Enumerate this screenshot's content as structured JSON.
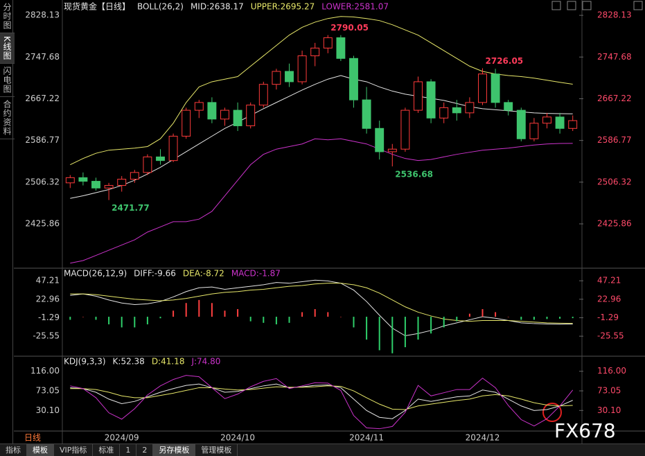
{
  "sidebar_tabs": [
    "分时图",
    "K线图",
    "闪电图",
    "合约资料"
  ],
  "period": "日线",
  "toolbar": [
    "指标",
    "模板",
    "VIP指标",
    "标准",
    "1",
    "2",
    "另存模板",
    "管理模板"
  ],
  "watermark": "FX678",
  "chart_data": [
    {
      "type": "candlestick",
      "title": "现货黄金【日线】",
      "subtitle": "BOLL(26,2)",
      "categories": [
        null,
        null,
        null,
        null,
        "2024/09",
        null,
        null,
        null,
        null,
        null,
        null,
        null,
        null,
        "2024/10",
        null,
        null,
        null,
        null,
        null,
        null,
        null,
        null,
        null,
        "2024/11",
        null,
        null,
        null,
        null,
        null,
        null,
        null,
        null,
        "2024/12",
        null,
        null,
        null,
        null,
        null,
        null,
        null
      ],
      "open": [
        2505,
        2515,
        2508,
        2495,
        2500,
        2512,
        2525,
        2555,
        2548,
        2595,
        2645,
        2660,
        2628,
        2645,
        2615,
        2655,
        2695,
        2720,
        2700,
        2750,
        2765,
        2785,
        2745,
        2665,
        2610,
        2565,
        2570,
        2645,
        2700,
        2630,
        2650,
        2640,
        2660,
        2715,
        2660,
        2645,
        2590,
        2620,
        2632,
        2610
      ],
      "high": [
        2520,
        2525,
        2515,
        2505,
        2518,
        2530,
        2560,
        2570,
        2600,
        2650,
        2665,
        2670,
        2650,
        2660,
        2660,
        2700,
        2725,
        2735,
        2760,
        2775,
        2790.05,
        2790,
        2750,
        2690,
        2625,
        2580,
        2650,
        2710,
        2705,
        2660,
        2665,
        2670,
        2726.05,
        2725,
        2665,
        2650,
        2630,
        2640,
        2640,
        2635
      ],
      "low": [
        2495,
        2500,
        2490,
        2471.77,
        2488,
        2505,
        2520,
        2540,
        2545,
        2590,
        2630,
        2620,
        2615,
        2605,
        2610,
        2650,
        2685,
        2690,
        2695,
        2730,
        2755,
        2740,
        2650,
        2600,
        2550,
        2536.68,
        2565,
        2640,
        2620,
        2620,
        2625,
        2630,
        2655,
        2650,
        2635,
        2585,
        2585,
        2610,
        2600,
        2605
      ],
      "close": [
        2515,
        2508,
        2495,
        2500,
        2512,
        2525,
        2555,
        2548,
        2595,
        2645,
        2660,
        2628,
        2645,
        2615,
        2655,
        2695,
        2720,
        2700,
        2750,
        2765,
        2785,
        2745,
        2665,
        2610,
        2565,
        2570,
        2645,
        2700,
        2630,
        2650,
        2640,
        2660,
        2715,
        2660,
        2645,
        2590,
        2620,
        2632,
        2610,
        2625
      ],
      "up_color": "#ff3b3b",
      "down_color": "#3ec46d",
      "series": [
        {
          "name": "MID:2638.17",
          "color": "#e6e6e6",
          "values": [
            2475,
            2480,
            2486,
            2492,
            2500,
            2510,
            2522,
            2535,
            2550,
            2565,
            2580,
            2595,
            2610,
            2622,
            2635,
            2648,
            2660,
            2672,
            2684,
            2695,
            2705,
            2712,
            2705,
            2700,
            2690,
            2682,
            2676,
            2672,
            2668,
            2664,
            2658,
            2652,
            2648,
            2646,
            2644,
            2642,
            2640,
            2639,
            2638.5,
            2638.17
          ]
        },
        {
          "name": "UPPER:2695.27",
          "color": "#e8e86a",
          "values": [
            2540,
            2552,
            2562,
            2568,
            2570,
            2572,
            2575,
            2590,
            2620,
            2660,
            2690,
            2700,
            2705,
            2710,
            2730,
            2750,
            2770,
            2790,
            2805,
            2815,
            2822,
            2826,
            2825,
            2822,
            2818,
            2810,
            2800,
            2790,
            2775,
            2760,
            2745,
            2730,
            2720,
            2715,
            2712,
            2710,
            2707,
            2703,
            2699,
            2695.27
          ]
        },
        {
          "name": "LOWER:2581.07",
          "color": "#cc33cc",
          "values": [
            2350,
            2355,
            2365,
            2375,
            2385,
            2395,
            2410,
            2420,
            2430,
            2430,
            2435,
            2450,
            2480,
            2510,
            2540,
            2560,
            2570,
            2575,
            2580,
            2590,
            2588,
            2590,
            2585,
            2580,
            2570,
            2560,
            2552,
            2548,
            2550,
            2555,
            2560,
            2564,
            2568,
            2570,
            2572,
            2575,
            2578,
            2580,
            2581,
            2581.07
          ]
        }
      ],
      "ylim": [
        2343,
        2847
      ],
      "yticks": [
        2425.86,
        2506.32,
        2586.77,
        2667.22,
        2747.68,
        2828.13
      ]
    },
    {
      "type": "bar",
      "title": "MACD(26,12,9)",
      "up_color": "#ff4040",
      "down_color": "#2fcf6a",
      "series": [
        {
          "name": "DIFF:-9.66",
          "type": "line",
          "color": "#e6e6e6",
          "values": [
            28,
            30,
            27,
            22,
            18,
            16,
            17,
            20,
            26,
            33,
            38,
            39,
            36,
            38,
            40,
            42,
            45,
            44,
            46,
            48,
            47,
            44,
            35,
            20,
            2,
            -15,
            -25,
            -22,
            -18,
            -12,
            -8,
            -4,
            0,
            -2,
            -5,
            -8,
            -9,
            -9.5,
            -9.8,
            -9.66
          ]
        },
        {
          "name": "DEA:-8.72",
          "type": "line",
          "color": "#e8e86a",
          "values": [
            30,
            30,
            29,
            27,
            25,
            23,
            22,
            21,
            22,
            24,
            27,
            30,
            32,
            33,
            35,
            36,
            38,
            40,
            41,
            43,
            44,
            44,
            42,
            38,
            31,
            22,
            13,
            6,
            1,
            -3,
            -5,
            -6,
            -5,
            -5,
            -5,
            -6,
            -7,
            -8,
            -8.5,
            -8.72
          ]
        },
        {
          "name": "MACD:-1.87",
          "type": "bar",
          "color": "#cc33cc",
          "values": [
            -4,
            0,
            -4,
            -10,
            -14,
            -14,
            -10,
            -2,
            8,
            18,
            22,
            18,
            8,
            10,
            -6,
            -8,
            -10,
            -8,
            6,
            10,
            6,
            0,
            -14,
            -30,
            -44,
            -48,
            -40,
            -30,
            -22,
            -14,
            -6,
            4,
            10,
            6,
            0,
            -4,
            -4,
            -3,
            -2.6,
            -1.87
          ]
        }
      ],
      "ylim": [
        -50,
        61
      ],
      "yticks": [
        -25.55,
        -1.29,
        22.96,
        47.21
      ]
    },
    {
      "type": "line",
      "title": "KDJ(9,3,3)",
      "series": [
        {
          "name": "K:52.38",
          "color": "#e6e6e6",
          "values": [
            80,
            78,
            70,
            55,
            45,
            50,
            60,
            70,
            78,
            85,
            88,
            80,
            70,
            72,
            78,
            84,
            88,
            80,
            82,
            85,
            86,
            80,
            55,
            30,
            15,
            12,
            30,
            55,
            50,
            55,
            60,
            62,
            75,
            70,
            55,
            40,
            30,
            32,
            40,
            52.38
          ]
        },
        {
          "name": "D:41.18",
          "color": "#e8e86a",
          "values": [
            78,
            78,
            76,
            70,
            62,
            58,
            58,
            63,
            68,
            74,
            80,
            80,
            77,
            75,
            76,
            79,
            82,
            81,
            81,
            82,
            84,
            83,
            73,
            58,
            44,
            33,
            32,
            40,
            44,
            48,
            52,
            55,
            62,
            65,
            62,
            55,
            47,
            42,
            40,
            41.18
          ]
        },
        {
          "name": "J:74.80",
          "color": "#cc33cc",
          "values": [
            84,
            78,
            58,
            25,
            11,
            34,
            64,
            84,
            98,
            107,
            104,
            80,
            56,
            66,
            82,
            94,
            100,
            78,
            84,
            91,
            90,
            74,
            19,
            -8,
            -10,
            -5,
            26,
            85,
            62,
            69,
            76,
            76,
            101,
            80,
            41,
            10,
            -4,
            12,
            40,
            74.8
          ]
        }
      ],
      "ylim": [
        -12,
        146
      ],
      "yticks": [
        {
          "value": 30.1,
          "label": "30.10"
        },
        73.05,
        {
          "value": 116,
          "label": "116.00"
        }
      ]
    }
  ]
}
